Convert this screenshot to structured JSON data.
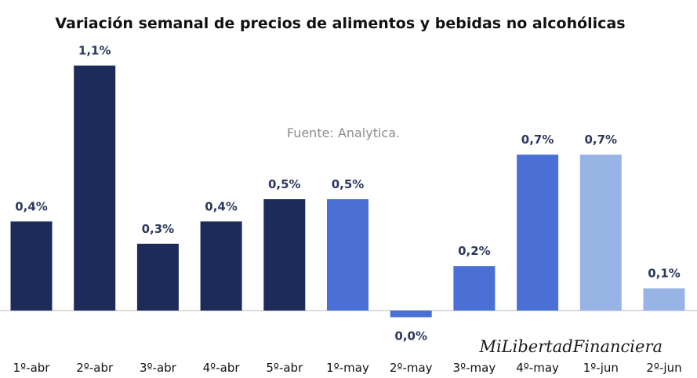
{
  "chart_data": {
    "type": "bar",
    "title": "Variación semanal de precios de alimentos y bebidas no alcohólicas",
    "source": "Fuente: Analytica.",
    "watermark": "MiLibertadFinanciera",
    "xlabel": "",
    "ylabel": "",
    "ylim": [
      -0.05,
      1.15
    ],
    "grid": false,
    "categories": [
      "1º-abr",
      "2º-abr",
      "3º-abr",
      "4º-abr",
      "5º-abr",
      "1º-may",
      "2º-may",
      "3º-may",
      "4º-may",
      "1º-jun",
      "2º-jun"
    ],
    "values": [
      0.4,
      1.1,
      0.3,
      0.4,
      0.5,
      0.5,
      -0.03,
      0.2,
      0.7,
      0.7,
      0.1
    ],
    "data_labels": [
      "0,4%",
      "1,1%",
      "0,3%",
      "0,4%",
      "0,5%",
      "0,5%",
      "0,0%",
      "0,2%",
      "0,7%",
      "0,7%",
      "0,1%"
    ],
    "bar_colors": [
      "#1c2b59",
      "#1c2b59",
      "#1c2b59",
      "#1c2b59",
      "#1c2b59",
      "#4a70d6",
      "#4a70d6",
      "#4a70d6",
      "#4a70d6",
      "#97b4e4",
      "#97b4e4"
    ]
  }
}
